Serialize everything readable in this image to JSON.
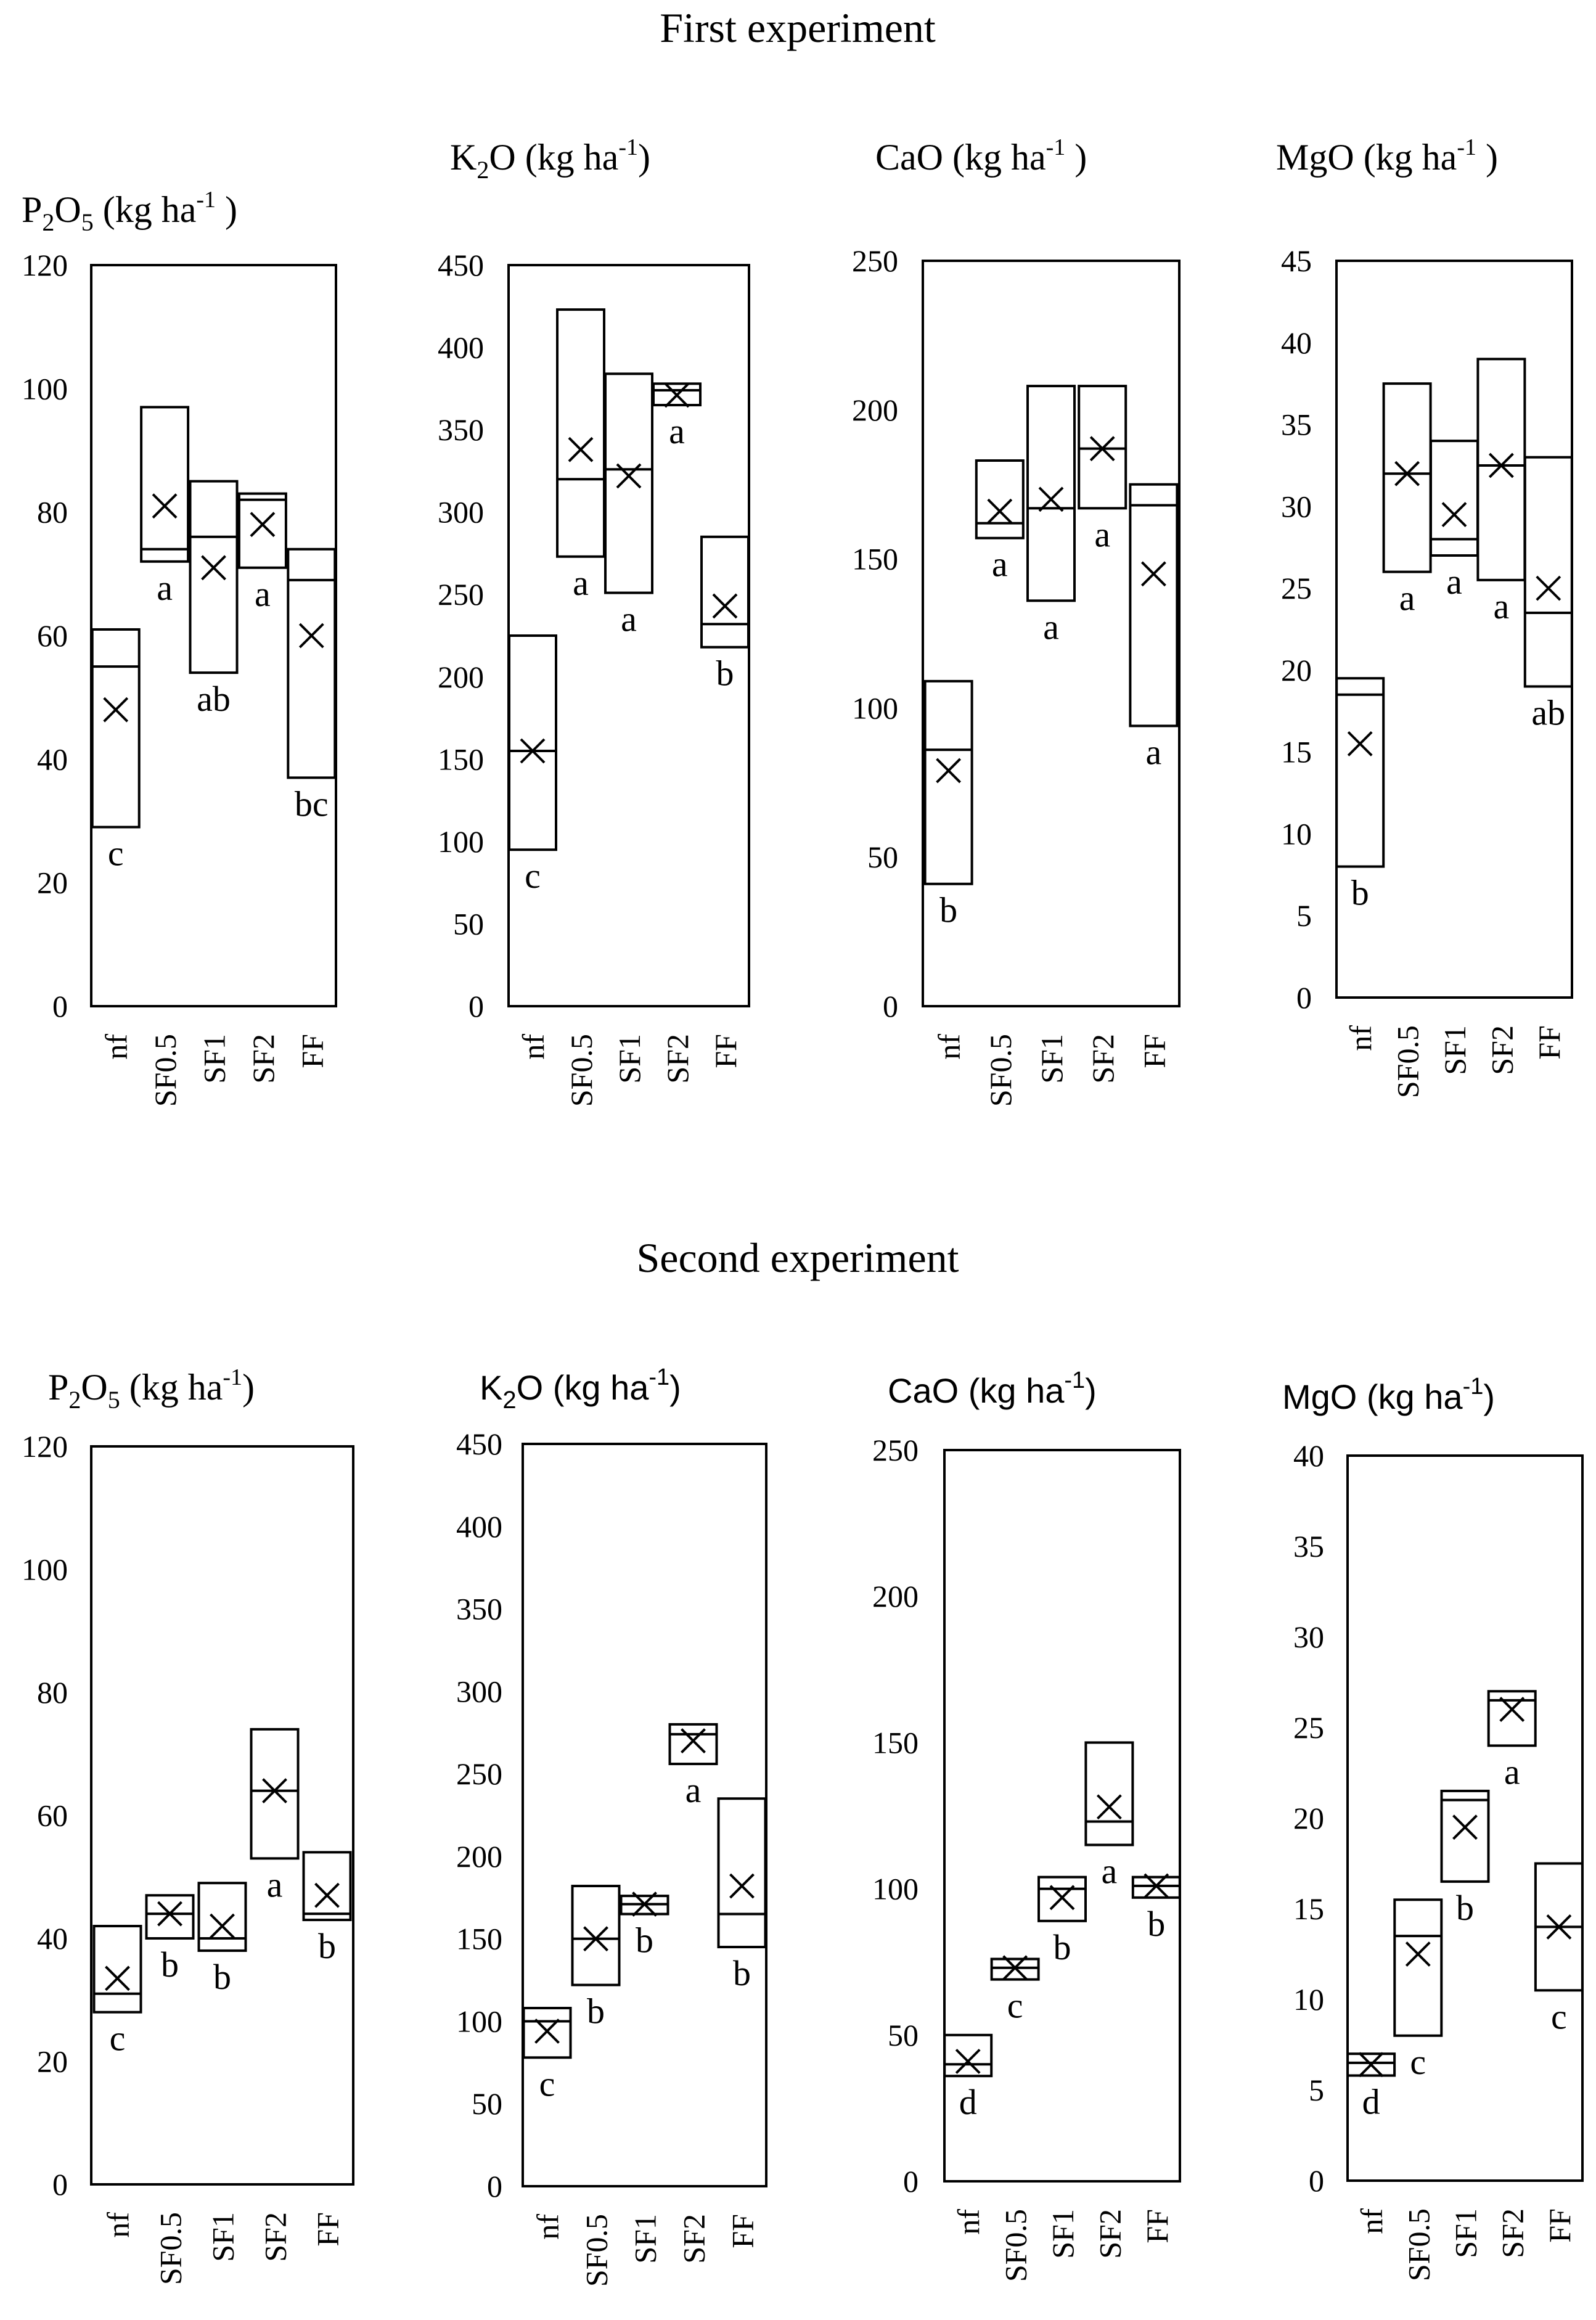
{
  "figure": {
    "experiment1_title": "First experiment",
    "experiment2_title": "Second experiment"
  },
  "chart_data": [
    {
      "type": "box",
      "experiment": "First experiment",
      "title": {
        "el": "P",
        "s1": "2",
        "mid": "O",
        "s2": "5",
        "unit": "  (kg ha",
        "sup": "-1",
        "close": " )"
      },
      "categories": [
        "nf",
        "SF0.5",
        "SF1",
        "SF2",
        "FF"
      ],
      "ylim": [
        0,
        120
      ],
      "yticks": [
        "0",
        "20",
        "40",
        "60",
        "80",
        "100",
        "120"
      ],
      "boxes": [
        {
          "min": 29,
          "max": 61,
          "median": 55,
          "mean": 48,
          "letter": "c"
        },
        {
          "min": 72,
          "max": 97,
          "median": 74,
          "mean": 81,
          "letter": "a"
        },
        {
          "min": 54,
          "max": 85,
          "median": 76,
          "mean": 71,
          "letter": "ab"
        },
        {
          "min": 71,
          "max": 83,
          "median": 82,
          "mean": 78,
          "letter": "a"
        },
        {
          "min": 37,
          "max": 74,
          "median": 69,
          "mean": 60,
          "letter": "bc"
        }
      ]
    },
    {
      "type": "box",
      "experiment": "First experiment",
      "title": {
        "el": "K",
        "s1": "2",
        "mid": "O",
        "s2": "",
        "unit": " (kg ha",
        "sup": "-1",
        "close": ")"
      },
      "categories": [
        "nf",
        "SF0.5",
        "SF1",
        "SF2",
        "FF"
      ],
      "ylim": [
        0,
        450
      ],
      "yticks": [
        "0",
        "50",
        "100",
        "150",
        "200",
        "250",
        "300",
        "350",
        "400",
        "450"
      ],
      "boxes": [
        {
          "min": 95,
          "max": 225,
          "median": 155,
          "mean": 155,
          "letter": "c"
        },
        {
          "min": 273,
          "max": 423,
          "median": 320,
          "mean": 338,
          "letter": "a"
        },
        {
          "min": 251,
          "max": 384,
          "median": 326,
          "mean": 322,
          "letter": "a"
        },
        {
          "min": 365,
          "max": 378,
          "median": 374,
          "mean": 371,
          "letter": "a"
        },
        {
          "min": 218,
          "max": 285,
          "median": 232,
          "mean": 243,
          "letter": "b"
        }
      ]
    },
    {
      "type": "box",
      "experiment": "First experiment",
      "title": {
        "el": "CaO",
        "s1": "",
        "mid": "",
        "s2": "",
        "unit": " (kg ha",
        "sup": "-1",
        "close": " )"
      },
      "categories": [
        "nf",
        "SF0.5",
        "SF1",
        "SF2",
        "FF"
      ],
      "ylim": [
        0,
        250
      ],
      "yticks": [
        "0",
        "50",
        "100",
        "150",
        "200",
        "250"
      ],
      "boxes": [
        {
          "min": 41,
          "max": 109,
          "median": 86,
          "mean": 79,
          "letter": "b"
        },
        {
          "min": 157,
          "max": 183,
          "median": 162,
          "mean": 166,
          "letter": "a"
        },
        {
          "min": 136,
          "max": 208,
          "median": 167,
          "mean": 170,
          "letter": "a"
        },
        {
          "min": 167,
          "max": 208,
          "median": 187,
          "mean": 187,
          "letter": "a"
        },
        {
          "min": 94,
          "max": 175,
          "median": 168,
          "mean": 145,
          "letter": "a"
        }
      ]
    },
    {
      "type": "box",
      "experiment": "First experiment",
      "title": {
        "el": "MgO",
        "s1": "",
        "mid": "",
        "s2": "",
        "unit": " (kg ha",
        "sup": "-1",
        "close": " )"
      },
      "categories": [
        "nf",
        "SF0.5",
        "SF1",
        "SF2",
        "FF"
      ],
      "ylim": [
        0,
        45
      ],
      "yticks": [
        "0",
        "5",
        "10",
        "15",
        "20",
        "25",
        "30",
        "35",
        "40",
        "45"
      ],
      "boxes": [
        {
          "min": 8,
          "max": 19.5,
          "median": 18.5,
          "mean": 15.5,
          "letter": "b"
        },
        {
          "min": 26,
          "max": 37.5,
          "median": 32,
          "mean": 32,
          "letter": "a"
        },
        {
          "min": 27,
          "max": 34,
          "median": 28,
          "mean": 29.5,
          "letter": "a"
        },
        {
          "min": 25.5,
          "max": 39,
          "median": 32.5,
          "mean": 32.5,
          "letter": "a"
        },
        {
          "min": 19,
          "max": 33,
          "median": 23.5,
          "mean": 25,
          "letter": "ab"
        }
      ]
    },
    {
      "type": "box",
      "experiment": "Second experiment",
      "title": {
        "el": "P",
        "s1": "2",
        "mid": "O",
        "s2": "5",
        "unit": " (kg ha",
        "sup": "-1",
        "close": ")"
      },
      "categories": [
        "nf",
        "SF0.5",
        "SF1",
        "SF2",
        "FF"
      ],
      "ylim": [
        0,
        120
      ],
      "yticks": [
        "0",
        "20",
        "40",
        "60",
        "80",
        "100",
        "120"
      ],
      "boxes": [
        {
          "min": 28,
          "max": 42,
          "median": 31,
          "mean": 33.5,
          "letter": "c"
        },
        {
          "min": 40,
          "max": 47,
          "median": 44,
          "mean": 44,
          "letter": "b"
        },
        {
          "min": 38,
          "max": 49,
          "median": 40,
          "mean": 42,
          "letter": "b"
        },
        {
          "min": 53,
          "max": 74,
          "median": 64,
          "mean": 64,
          "letter": "a"
        },
        {
          "min": 43,
          "max": 54,
          "median": 44,
          "mean": 47,
          "letter": "b"
        }
      ]
    },
    {
      "type": "box",
      "experiment": "Second experiment",
      "title": {
        "el": "K",
        "s1": "2",
        "mid": "O",
        "s2": "",
        "unit": " (kg ha",
        "sup": "-1",
        "close": ")",
        "sans": true
      },
      "categories": [
        "nf",
        "SF0.5",
        "SF1",
        "SF2",
        "FF"
      ],
      "ylim": [
        0,
        450
      ],
      "yticks": [
        "0",
        "50",
        "100",
        "150",
        "200",
        "250",
        "300",
        "350",
        "400",
        "450"
      ],
      "boxes": [
        {
          "min": 78,
          "max": 108,
          "median": 100,
          "mean": 94,
          "letter": "c"
        },
        {
          "min": 122,
          "max": 182,
          "median": 150,
          "mean": 150,
          "letter": "b"
        },
        {
          "min": 165,
          "max": 176,
          "median": 171,
          "mean": 171,
          "letter": "b"
        },
        {
          "min": 256,
          "max": 280,
          "median": 274,
          "mean": 270,
          "letter": "a"
        },
        {
          "min": 145,
          "max": 235,
          "median": 165,
          "mean": 182,
          "letter": "b"
        }
      ]
    },
    {
      "type": "box",
      "experiment": "Second experiment",
      "title": {
        "el": "CaO",
        "s1": "",
        "mid": "",
        "s2": "",
        "unit": " (kg ha",
        "sup": "-1",
        "close": ")",
        "sans": true
      },
      "categories": [
        "nf",
        "SF0.5",
        "SF1",
        "SF2",
        "FF"
      ],
      "ylim": [
        0,
        250
      ],
      "yticks": [
        "0",
        "50",
        "100",
        "150",
        "200",
        "250"
      ],
      "boxes": [
        {
          "min": 36,
          "max": 50,
          "median": 40,
          "mean": 41,
          "letter": "d"
        },
        {
          "min": 69,
          "max": 76,
          "median": 73,
          "mean": 73,
          "letter": "c"
        },
        {
          "min": 89,
          "max": 104,
          "median": 100,
          "mean": 97,
          "letter": "b"
        },
        {
          "min": 115,
          "max": 150,
          "median": 123,
          "mean": 128,
          "letter": "a"
        },
        {
          "min": 97,
          "max": 104,
          "median": 101,
          "mean": 101,
          "letter": "b"
        }
      ]
    },
    {
      "type": "box",
      "experiment": "Second experiment",
      "title": {
        "el": "MgO",
        "s1": "",
        "mid": "",
        "s2": "",
        "unit": " (kg ha",
        "sup": "-1",
        "close": ")",
        "sans": true
      },
      "categories": [
        "nf",
        "SF0.5",
        "SF1",
        "SF2",
        "FF"
      ],
      "ylim": [
        0,
        40
      ],
      "yticks": [
        "0",
        "5",
        "10",
        "15",
        "20",
        "25",
        "30",
        "35",
        "40"
      ],
      "boxes": [
        {
          "min": 5.8,
          "max": 7,
          "median": 6.5,
          "mean": 6.4,
          "letter": "d"
        },
        {
          "min": 8,
          "max": 15.5,
          "median": 13.5,
          "mean": 12.5,
          "letter": "c"
        },
        {
          "min": 16.5,
          "max": 21.5,
          "median": 21,
          "mean": 19.5,
          "letter": "b"
        },
        {
          "min": 24,
          "max": 27,
          "median": 26.5,
          "mean": 26,
          "letter": "a"
        },
        {
          "min": 10.5,
          "max": 17.5,
          "median": 14,
          "mean": 14,
          "letter": "c"
        }
      ]
    }
  ]
}
